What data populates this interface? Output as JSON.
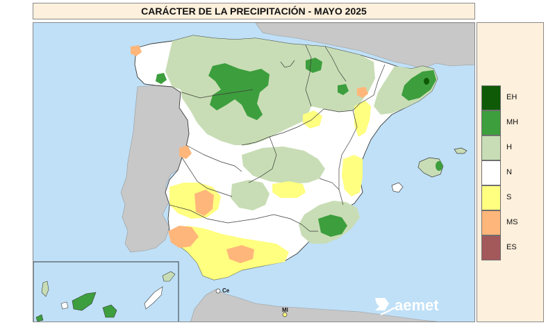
{
  "map": {
    "title": "CARÁCTER DE LA PRECIPITACIÓN - MAYO 2025",
    "labels": {
      "ceuta": "Ce",
      "melilla": "Ml"
    },
    "logo_text": "aemet"
  },
  "legend": {
    "items": [
      {
        "code": "EH",
        "color": "#0f5a06"
      },
      {
        "code": "MH",
        "color": "#3d9e3d"
      },
      {
        "code": "H",
        "color": "#c8ddb5"
      },
      {
        "code": "N",
        "color": "#ffffff"
      },
      {
        "code": "S",
        "color": "#ffff80"
      },
      {
        "code": "MS",
        "color": "#ffb67a"
      },
      {
        "code": "ES",
        "color": "#a3585a"
      }
    ]
  },
  "colors": {
    "sea": "#bfe0f7",
    "foreign_land": "#c8c8c8",
    "panel_bg": "#fdf0dc",
    "border": "#3a3a3a"
  }
}
